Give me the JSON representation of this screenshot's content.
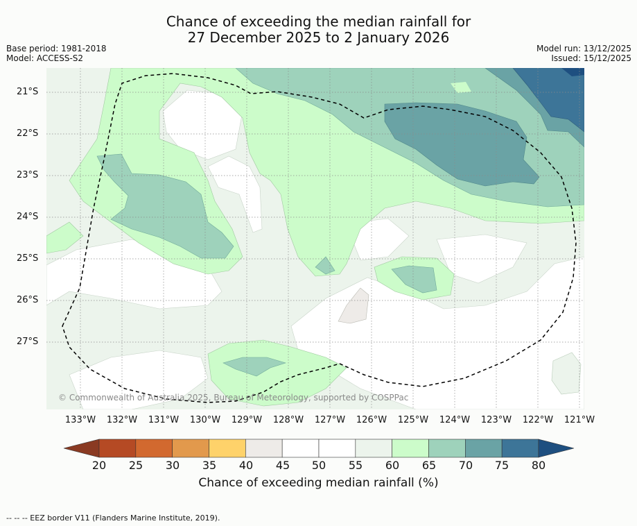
{
  "title_lines": [
    "Chance of exceeding the median rainfall for",
    "27 December 2025 to 2 January 2026"
  ],
  "meta_left": [
    "Base period: 1981-2018",
    "Model: ACCESS-S2"
  ],
  "meta_right": [
    "Model run: 13/12/2025",
    "Issued: 15/12/2025"
  ],
  "lat_labels": [
    "21°S",
    "22°S",
    "23°S",
    "24°S",
    "25°S",
    "26°S",
    "27°S"
  ],
  "lon_labels": [
    "133°W",
    "132°W",
    "131°W",
    "130°W",
    "129°W",
    "128°W",
    "127°W",
    "126°W",
    "125°W",
    "124°W",
    "123°W",
    "122°W",
    "121°W"
  ],
  "credit": "© Commonwealth of Australia 2025, Bureau of Meteorology, supported by COSPPac",
  "colorbar": {
    "ticks": [
      "20",
      "25",
      "30",
      "35",
      "40",
      "45",
      "50",
      "55",
      "60",
      "65",
      "70",
      "75",
      "80"
    ],
    "colors": [
      "#b54a24",
      "#d2692f",
      "#e2994c",
      "#fed26a",
      "#eeebe8",
      "#ffffff",
      "#ffffff",
      "#ecf4ec",
      "#ccfcca",
      "#9ed2bb",
      "#6aa3a5",
      "#3d7598"
    ],
    "under_color": "#8a3a22",
    "over_color": "#1e4f80",
    "title": "Chance of exceeding median rainfall (%)"
  },
  "footnote": "-- -- -- EEZ border V11 (Flanders Marine Institute, 2019)."
}
